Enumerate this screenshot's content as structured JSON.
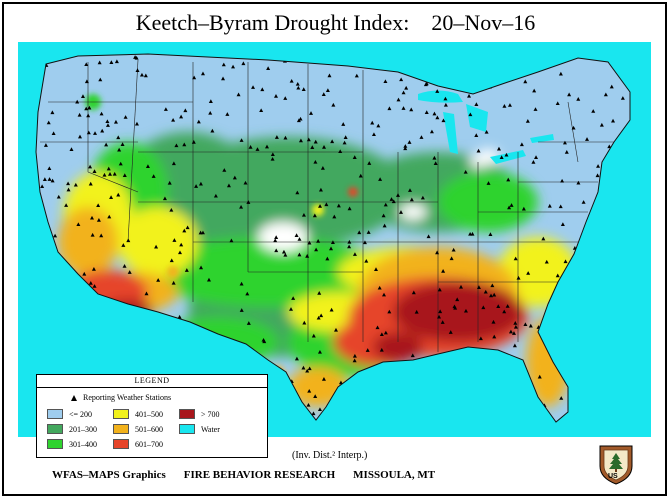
{
  "title": "Keetch–Byram Drought Index:    20–Nov–16",
  "legend": {
    "heading": "LEGEND",
    "stations_label": "Reporting Weather Stations",
    "items": [
      {
        "label": "<= 200",
        "color": "#9fcdee"
      },
      {
        "label": "201–300",
        "color": "#43a85e"
      },
      {
        "label": "301–400",
        "color": "#2fd32f"
      },
      {
        "label": "401–500",
        "color": "#f2f21c"
      },
      {
        "label": "501–600",
        "color": "#f2b21c"
      },
      {
        "label": "601–700",
        "color": "#e6452a"
      },
      {
        "label": "> 700",
        "color": "#a8161b"
      },
      {
        "label": "Water",
        "color": "#19e6ef"
      }
    ]
  },
  "interp_note": "(Inv. Dist.² Interp.)",
  "footer": {
    "left": "WFAS–MAPS Graphics",
    "middle": "FIRE BEHAVIOR RESEARCH",
    "right": "MISSOULA, MT"
  },
  "badge": {
    "text": "US",
    "icon": "forest-service-shield-icon"
  },
  "colors": {
    "water": "#19e6ef",
    "no_data": "#ffffff",
    "border": "#222222"
  }
}
